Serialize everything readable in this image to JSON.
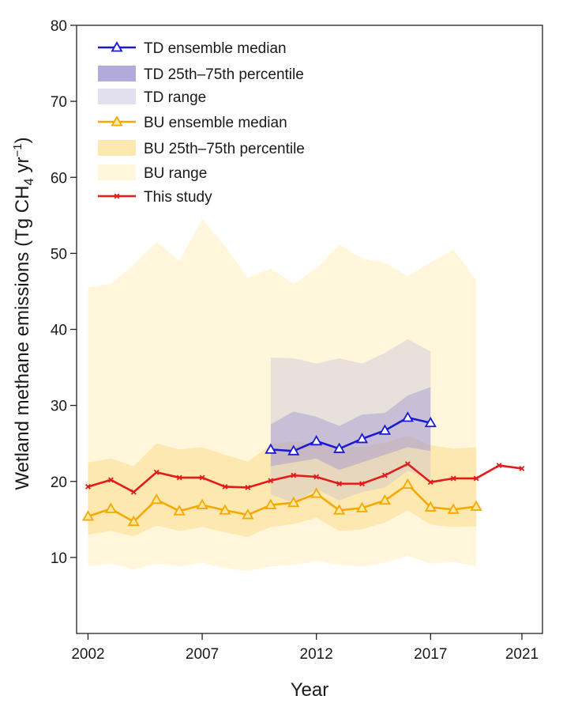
{
  "chart_data": {
    "type": "line",
    "title": "",
    "xlabel": "Year",
    "ylabel": {
      "prefix": "Wetland methane emissions (Tg CH",
      "subscript": "4",
      "middle": " yr",
      "superscript": "−1",
      "suffix": ")"
    },
    "xlim": [
      2001.5,
      2021.9
    ],
    "ylim": [
      0,
      80
    ],
    "xticks": [
      2002,
      2007,
      2012,
      2017,
      2021
    ],
    "yticks": [
      10,
      20,
      30,
      40,
      50,
      60,
      70,
      80
    ],
    "legend_position": "top-left",
    "colors": {
      "td_line": "#1a1ad6",
      "td_iqr": "#b3aadc",
      "td_range": "#e2e0ee",
      "bu_line": "#f5a800",
      "bu_iqr": "#fde8b0",
      "bu_range": "#fff6dc",
      "this_study": "#e41b1b"
    },
    "legend": [
      {
        "key": "td_median",
        "label": "TD ensemble median",
        "kind": "line-triangle",
        "color": "#1a1ad6"
      },
      {
        "key": "td_iqr",
        "label": "TD 25th–75th percentile",
        "kind": "patch",
        "color": "#b3aadc"
      },
      {
        "key": "td_range",
        "label": "TD range",
        "kind": "patch",
        "color": "#e2e0ee"
      },
      {
        "key": "bu_median",
        "label": "BU ensemble median",
        "kind": "line-triangle",
        "color": "#f5a800"
      },
      {
        "key": "bu_iqr",
        "label": "BU 25th–75th percentile",
        "kind": "patch",
        "color": "#fde8b0"
      },
      {
        "key": "bu_range",
        "label": "BU range",
        "kind": "patch",
        "color": "#fff6dc"
      },
      {
        "key": "this_study",
        "label": "This study",
        "kind": "line-cross",
        "color": "#e41b1b"
      }
    ],
    "bu": {
      "x": [
        2002,
        2003,
        2004,
        2005,
        2006,
        2007,
        2008,
        2009,
        2010,
        2011,
        2012,
        2013,
        2014,
        2015,
        2016,
        2017,
        2018,
        2019
      ],
      "median": [
        15.4,
        16.4,
        14.7,
        17.6,
        16.1,
        16.9,
        16.2,
        15.6,
        16.9,
        17.2,
        18.4,
        16.2,
        16.5,
        17.5,
        19.6,
        16.6,
        16.3,
        16.7
      ],
      "min": [
        8.8,
        9.2,
        8.4,
        9.2,
        8.8,
        9.3,
        8.6,
        8.2,
        8.8,
        9.0,
        9.5,
        9.0,
        8.8,
        9.3,
        10.2,
        9.2,
        9.4,
        8.8
      ],
      "max": [
        45.5,
        46.0,
        48.5,
        51.5,
        49.0,
        54.5,
        51.0,
        46.8,
        48.0,
        46.0,
        48.0,
        51.2,
        49.3,
        48.8,
        47.0,
        48.8,
        50.5,
        46.5
      ],
      "q25": [
        13.0,
        13.5,
        12.8,
        14.2,
        13.5,
        14.0,
        13.3,
        12.7,
        14.0,
        14.4,
        15.2,
        13.5,
        13.7,
        14.6,
        16.2,
        14.3,
        14.0,
        14.1
      ],
      "q75": [
        22.5,
        23.0,
        22.0,
        25.0,
        24.2,
        24.5,
        23.5,
        22.6,
        24.8,
        25.3,
        24.8,
        24.5,
        24.5,
        25.1,
        26.0,
        24.8,
        24.3,
        24.5
      ]
    },
    "td": {
      "x": [
        2010,
        2011,
        2012,
        2013,
        2014,
        2015,
        2016,
        2017
      ],
      "median": [
        24.2,
        24.0,
        25.3,
        24.3,
        25.6,
        26.7,
        28.4,
        27.7
      ],
      "min": [
        18.3,
        17.2,
        19.0,
        17.5,
        18.6,
        19.2,
        21.4,
        20.3
      ],
      "max": [
        36.3,
        36.2,
        35.5,
        36.2,
        35.5,
        36.9,
        38.7,
        37.1
      ],
      "q25": [
        22.0,
        22.5,
        23.0,
        21.5,
        22.5,
        23.5,
        24.5,
        24.0
      ],
      "q75": [
        27.5,
        29.2,
        28.5,
        27.3,
        28.8,
        29.0,
        31.3,
        32.4
      ]
    },
    "this_study": {
      "x": [
        2002,
        2003,
        2004,
        2005,
        2006,
        2007,
        2008,
        2009,
        2010,
        2011,
        2012,
        2013,
        2014,
        2015,
        2016,
        2017,
        2018,
        2019,
        2020,
        2021
      ],
      "values": [
        19.3,
        20.2,
        18.6,
        21.2,
        20.5,
        20.5,
        19.3,
        19.2,
        20.1,
        20.8,
        20.6,
        19.7,
        19.7,
        20.8,
        22.3,
        19.9,
        20.4,
        20.4,
        22.1,
        21.7
      ]
    }
  }
}
